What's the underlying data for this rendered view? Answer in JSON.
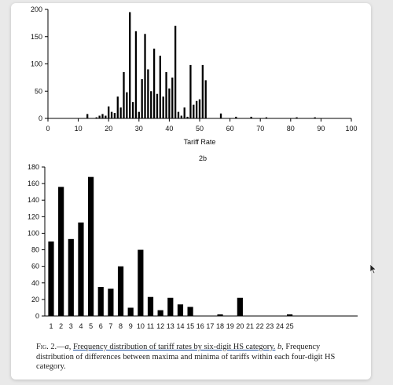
{
  "chart_data": [
    {
      "type": "bar",
      "title": "",
      "xlabel": "Tariff Rate",
      "ylabel": "",
      "xlim": [
        0,
        100
      ],
      "ylim": [
        0,
        200
      ],
      "x_ticks": [
        0,
        10,
        20,
        30,
        40,
        50,
        60,
        70,
        80,
        90,
        100
      ],
      "y_ticks": [
        0,
        50,
        100,
        150,
        200
      ],
      "x": [
        13,
        16,
        17,
        18,
        19,
        20,
        21,
        22,
        23,
        24,
        25,
        26,
        27,
        28,
        29,
        30,
        31,
        32,
        33,
        34,
        35,
        36,
        37,
        38,
        39,
        40,
        41,
        42,
        43,
        44,
        45,
        46,
        47,
        48,
        49,
        50,
        51,
        52,
        57,
        62,
        67,
        72,
        82,
        88
      ],
      "values": [
        8,
        2,
        5,
        8,
        5,
        22,
        12,
        10,
        40,
        20,
        85,
        48,
        195,
        30,
        160,
        12,
        72,
        155,
        90,
        50,
        128,
        45,
        115,
        40,
        85,
        55,
        75,
        170,
        12,
        5,
        20,
        3,
        98,
        25,
        32,
        35,
        98,
        70,
        9,
        3,
        3,
        2,
        2,
        2
      ]
    },
    {
      "type": "bar",
      "title": "2b",
      "xlabel": "",
      "ylabel": "",
      "ylim": [
        0,
        180
      ],
      "y_ticks": [
        0,
        20,
        40,
        60,
        80,
        100,
        120,
        140,
        160,
        180
      ],
      "categories": [
        "1",
        "2",
        "3",
        "4",
        "5",
        "6",
        "7",
        "8",
        "9",
        "10",
        "11",
        "12",
        "13",
        "14",
        "15",
        "16",
        "17",
        "18",
        "19",
        "20",
        "21",
        "22",
        "23",
        "24",
        "25"
      ],
      "values": [
        90,
        156,
        93,
        113,
        168,
        35,
        33,
        60,
        10,
        80,
        23,
        7,
        22,
        14,
        11,
        0,
        0,
        2,
        0,
        22,
        0,
        0,
        0,
        0,
        2
      ]
    }
  ],
  "caption": {
    "fig_label": "Fig. 2.",
    "dash": "—",
    "part_a": "a,",
    "text_a": "Frequency distribution of tariff rates by six-digit HS category.",
    "part_b": "b,",
    "text_b_line1": "Frequency",
    "text_b_rest": "distribution of differences between maxima and minima of tariffs within each four-digit HS category."
  },
  "colors": {
    "bar": "#000000",
    "axis": "#000000",
    "underline": "#1a4fa3"
  }
}
